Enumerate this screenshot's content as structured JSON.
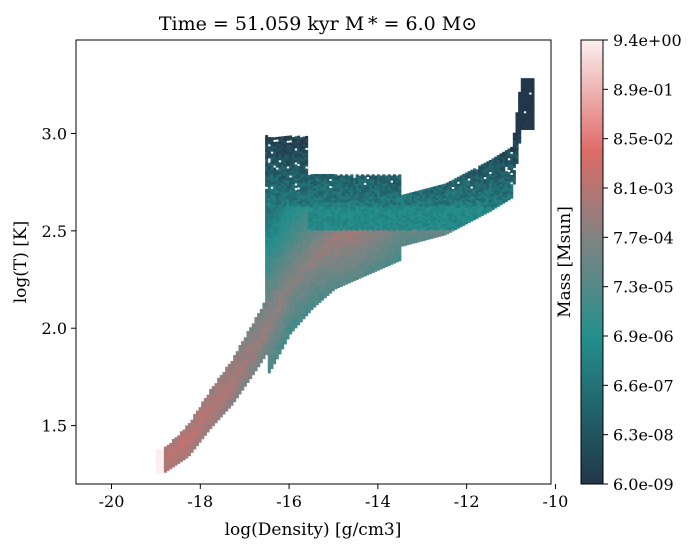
{
  "chart_data": {
    "type": "heatmap",
    "title": "Time = 51.059 kyr    M$_*$ = 6.0 M$_\\odot$",
    "title_display": "Time = 51.059 kyr    M * = 6.0 M⊙",
    "xlabel": "log(Density) [g/cm3]",
    "ylabel": "log(T) [K]",
    "xlim": [
      -20.8,
      -10.1
    ],
    "ylim": [
      1.2,
      3.48
    ],
    "x_ticks": [
      -20,
      -18,
      -16,
      -14,
      -12,
      -10
    ],
    "x_tick_labels": [
      "-20",
      "-18",
      "-16",
      "-14",
      "-12",
      "-10"
    ],
    "y_ticks": [
      1.5,
      2.0,
      2.5,
      3.0
    ],
    "y_tick_labels": [
      "1.5",
      "2.0",
      "2.5",
      "3.0"
    ],
    "grid": false,
    "colorbar": {
      "label": "Mass [Msun]",
      "scale": "log",
      "range": [
        6e-09,
        9.4
      ],
      "tick_labels": [
        "6.0e-09",
        "6.3e-08",
        "6.6e-07",
        "6.9e-06",
        "7.3e-05",
        "7.7e-04",
        "8.1e-03",
        "8.5e-02",
        "8.9e-01",
        "9.4e+00"
      ],
      "colormap_stops": [
        "#22374a",
        "#238f8c",
        "#7f8383",
        "#de6b67",
        "#fbeff0"
      ]
    },
    "distribution": {
      "description_free": true,
      "spine": [
        {
          "x": -18.85,
          "y": 1.32,
          "log_mass": -1.7
        },
        {
          "x": -18.3,
          "y": 1.42,
          "log_mass": -1.6
        },
        {
          "x": -17.8,
          "y": 1.58,
          "log_mass": -1.8
        },
        {
          "x": -17.3,
          "y": 1.72,
          "log_mass": -2.0
        },
        {
          "x": -16.8,
          "y": 1.9,
          "log_mass": -2.3
        },
        {
          "x": -16.4,
          "y": 2.05,
          "log_mass": -2.5
        },
        {
          "x": -16.0,
          "y": 2.22,
          "log_mass": -2.7
        },
        {
          "x": -15.5,
          "y": 2.35,
          "log_mass": -2.6
        },
        {
          "x": -15.0,
          "y": 2.45,
          "log_mass": -2.3
        },
        {
          "x": -14.5,
          "y": 2.5,
          "log_mass": -2.2
        },
        {
          "x": -14.0,
          "y": 2.55,
          "log_mass": -2.4
        },
        {
          "x": -13.5,
          "y": 2.6,
          "log_mass": -2.7
        },
        {
          "x": -13.0,
          "y": 2.63,
          "log_mass": -2.6
        },
        {
          "x": -12.5,
          "y": 2.66,
          "log_mass": -2.3
        },
        {
          "x": -12.0,
          "y": 2.72,
          "log_mass": -2.0
        },
        {
          "x": -11.5,
          "y": 2.78,
          "log_mass": -1.9
        },
        {
          "x": -11.0,
          "y": 2.85,
          "log_mass": -2.1
        },
        {
          "x": -10.8,
          "y": 3.2,
          "log_mass": -2.5
        }
      ]
    }
  }
}
